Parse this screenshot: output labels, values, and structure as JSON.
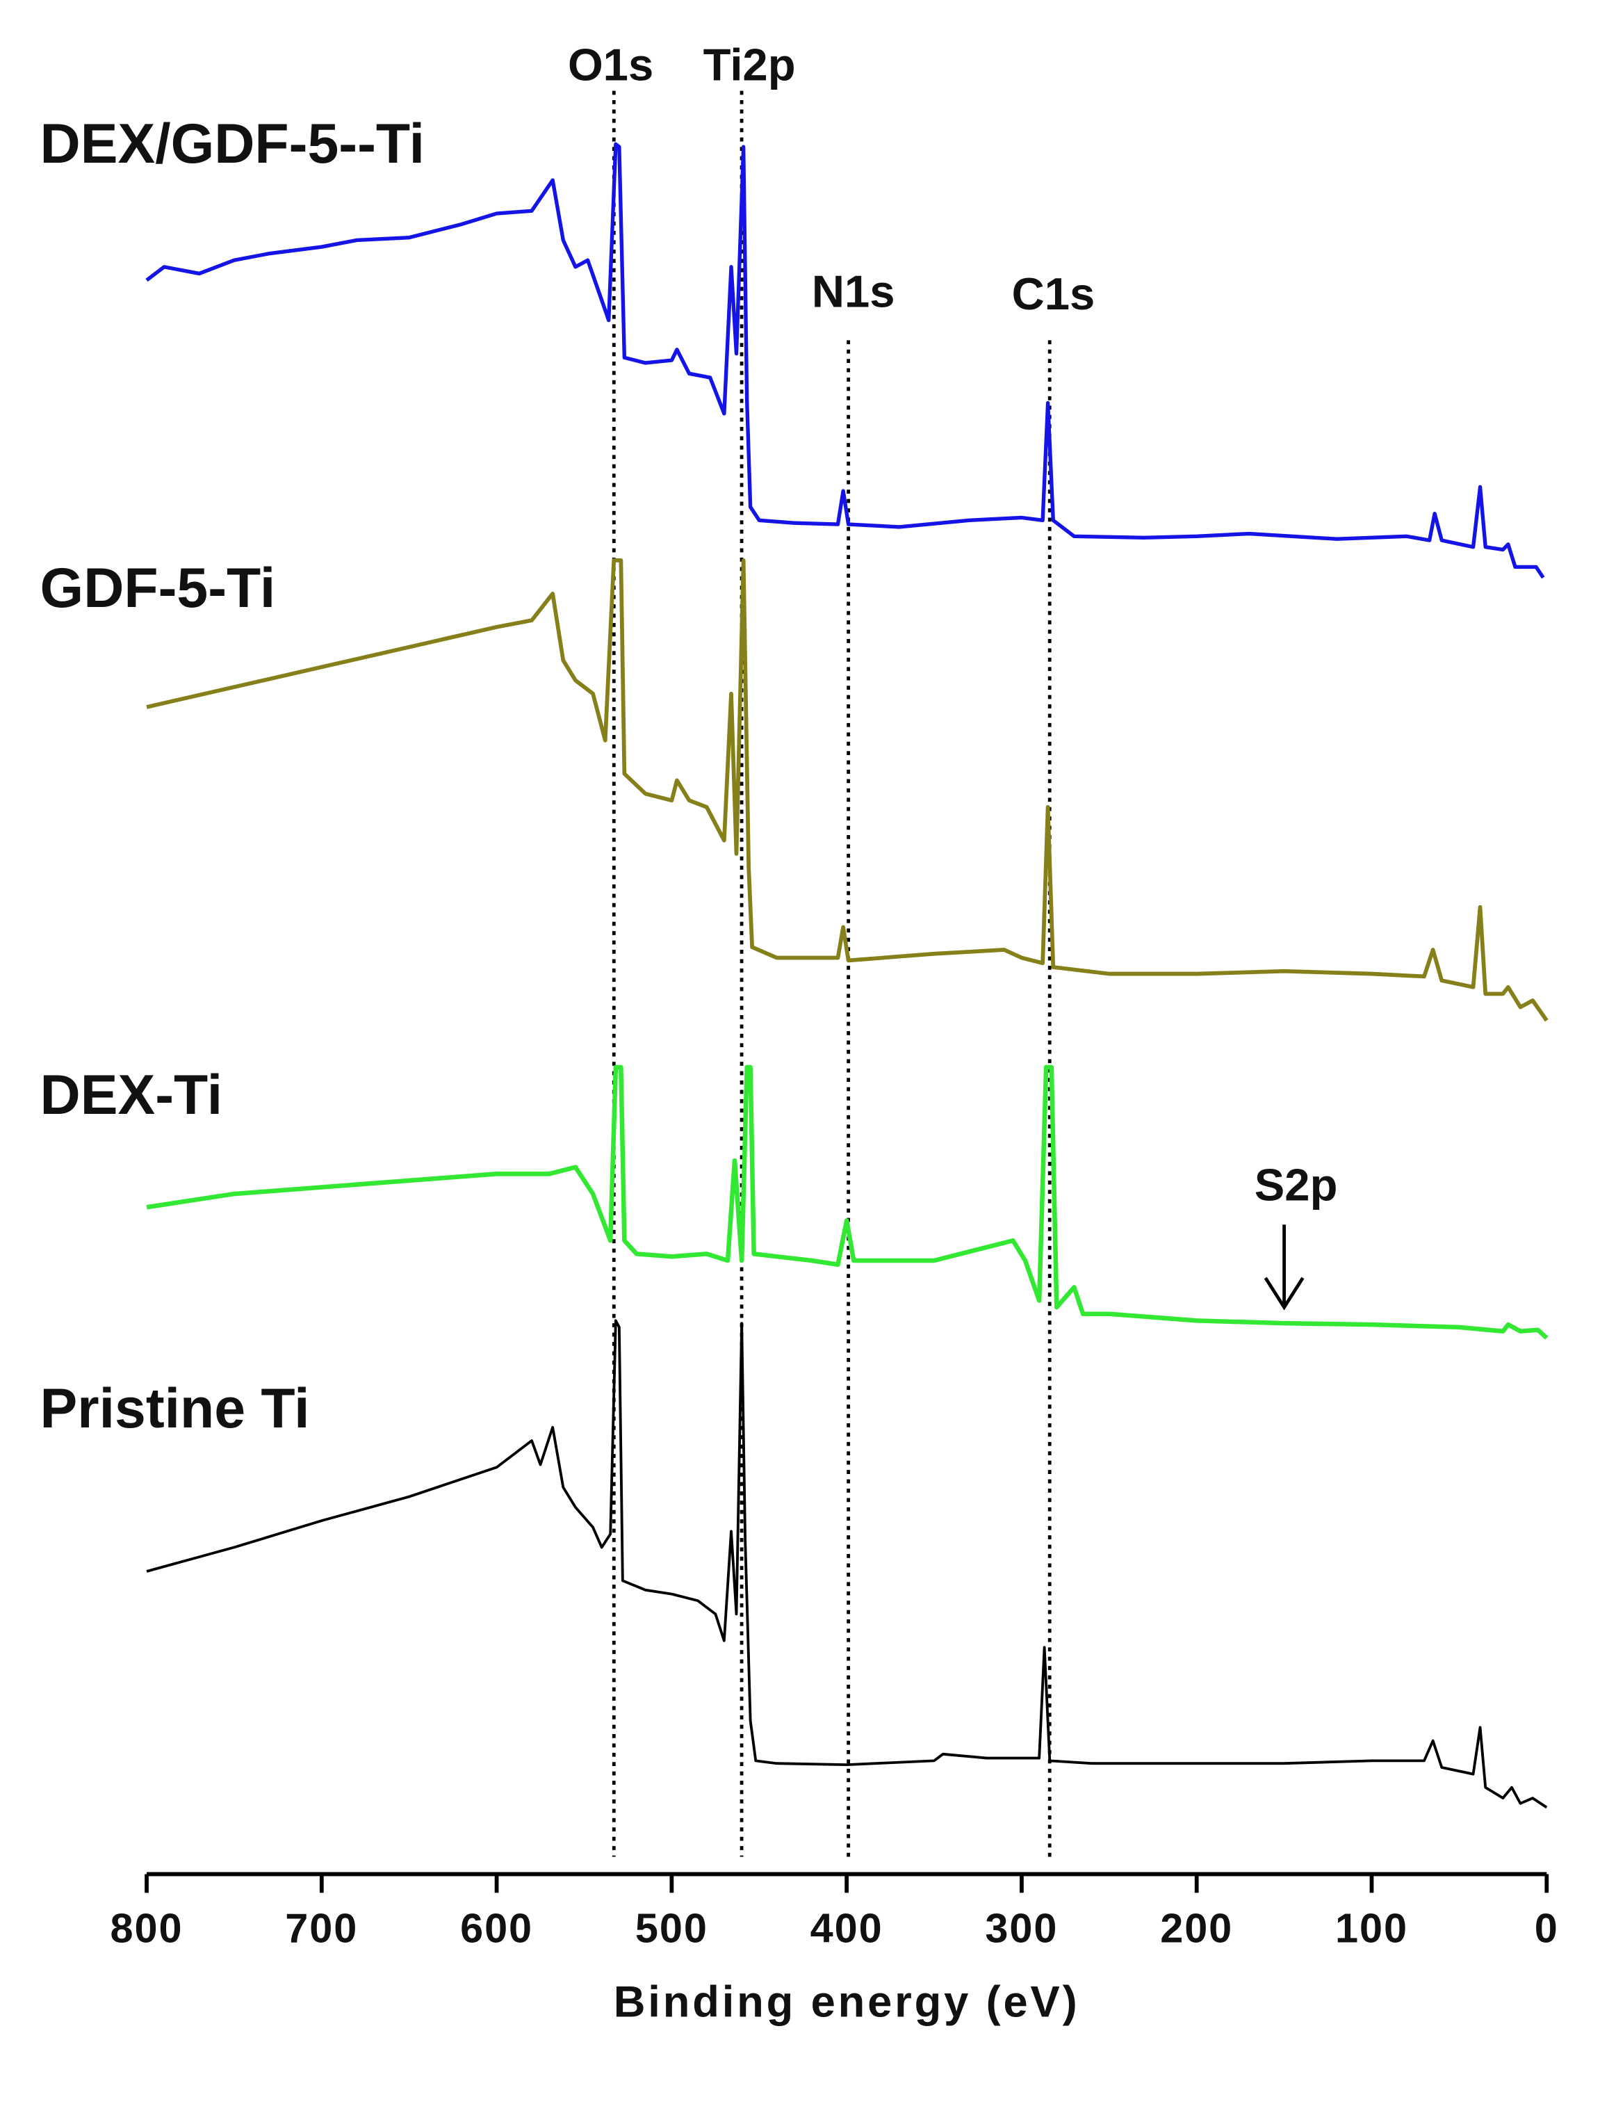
{
  "chart_data": {
    "type": "line",
    "x_label": "Binding energy (eV)",
    "xlim": [
      800,
      0
    ],
    "xticks": [
      800,
      700,
      600,
      500,
      400,
      300,
      200,
      100,
      0
    ],
    "ylim": [
      0,
      1325
    ],
    "series": [
      {
        "name": "DEX/GDF-5--Ti",
        "color": "#1414e6",
        "x": [
          800,
          790,
          770,
          750,
          730,
          700,
          680,
          650,
          620,
          600,
          580,
          568,
          562,
          555,
          548,
          540,
          536,
          532,
          530,
          527,
          515,
          500,
          497,
          490,
          478,
          470,
          466,
          463,
          459,
          457,
          455,
          450,
          430,
          405,
          402,
          399,
          370,
          330,
          300,
          288,
          285,
          282,
          270,
          230,
          200,
          170,
          120,
          80,
          67,
          64,
          60,
          42,
          38,
          35,
          25,
          22,
          18,
          10,
          6,
          2
        ],
        "values": [
          1195,
          1205,
          1200,
          1210,
          1215,
          1220,
          1225,
          1227,
          1237,
          1245,
          1247,
          1270,
          1225,
          1205,
          1210,
          1180,
          1165,
          1297,
          1295,
          1137,
          1133,
          1135,
          1143,
          1125,
          1122,
          1095,
          1205,
          1140,
          1295,
          1105,
          1025,
          1015,
          1013,
          1012,
          1037,
          1012,
          1010,
          1015,
          1017,
          1015,
          1103,
          1015,
          1003,
          1002,
          1003,
          1005,
          1001,
          1003,
          1000,
          1020,
          1000,
          995,
          1040,
          995,
          993,
          997,
          980,
          980,
          980,
          972
        ]
      },
      {
        "name": "GDF-5-Ti",
        "color": "#85801a",
        "x": [
          800,
          700,
          600,
          580,
          568,
          562,
          555,
          545,
          538,
          533,
          529,
          527,
          515,
          500,
          497,
          490,
          480,
          470,
          466,
          463,
          459,
          456,
          454,
          440,
          405,
          402,
          399,
          350,
          310,
          300,
          288,
          285,
          282,
          250,
          200,
          150,
          100,
          70,
          65,
          60,
          42,
          38,
          35,
          25,
          22,
          15,
          8,
          0
        ],
        "values": [
          875,
          905,
          935,
          940,
          960,
          910,
          895,
          885,
          850,
          985,
          985,
          825,
          810,
          805,
          820,
          805,
          800,
          775,
          885,
          765,
          985,
          755,
          695,
          687,
          687,
          710,
          685,
          690,
          693,
          687,
          683,
          800,
          680,
          675,
          675,
          677,
          675,
          673,
          693,
          670,
          665,
          725,
          660,
          660,
          665,
          650,
          655,
          640
        ]
      },
      {
        "name": "DEX-Ti",
        "color": "#33e833",
        "x": [
          800,
          750,
          700,
          650,
          600,
          570,
          555,
          545,
          535,
          532,
          529,
          527,
          520,
          500,
          480,
          468,
          464,
          460,
          457,
          455,
          453,
          420,
          405,
          400,
          396,
          350,
          320,
          305,
          298,
          290,
          286,
          283,
          280,
          270,
          265,
          250,
          200,
          150,
          100,
          50,
          25,
          22,
          15,
          5,
          0
        ],
        "values": [
          500,
          510,
          515,
          520,
          525,
          525,
          530,
          510,
          475,
          605,
          605,
          475,
          465,
          463,
          465,
          460,
          535,
          460,
          605,
          605,
          465,
          460,
          457,
          490,
          460,
          460,
          470,
          475,
          460,
          430,
          605,
          605,
          425,
          440,
          420,
          420,
          415,
          413,
          412,
          410,
          407,
          412,
          407,
          408,
          402
        ]
      },
      {
        "name": "Pristine Ti",
        "color": "#000000",
        "x": [
          800,
          750,
          700,
          650,
          600,
          580,
          575,
          568,
          562,
          555,
          545,
          540,
          535,
          532,
          530,
          528,
          515,
          500,
          485,
          475,
          470,
          466,
          463,
          460,
          458,
          455,
          452,
          440,
          400,
          350,
          345,
          320,
          290,
          287,
          284,
          260,
          200,
          150,
          100,
          70,
          65,
          60,
          42,
          38,
          35,
          25,
          20,
          15,
          8,
          0
        ],
        "values": [
          227,
          245,
          265,
          283,
          305,
          325,
          307,
          335,
          290,
          275,
          260,
          245,
          255,
          415,
          410,
          220,
          213,
          210,
          205,
          195,
          175,
          257,
          195,
          413,
          250,
          115,
          85,
          83,
          82,
          85,
          90,
          87,
          87,
          170,
          85,
          83,
          83,
          83,
          85,
          85,
          100,
          80,
          75,
          110,
          65,
          57,
          65,
          53,
          57,
          50
        ]
      }
    ],
    "annotations": [
      {
        "text": "O1s",
        "x": 533
      },
      {
        "text": "Ti2p",
        "x": 460
      },
      {
        "text": "N1s",
        "x": 399
      },
      {
        "text": "C1s",
        "x": 284
      },
      {
        "text": "S2p",
        "x": 150
      }
    ]
  }
}
